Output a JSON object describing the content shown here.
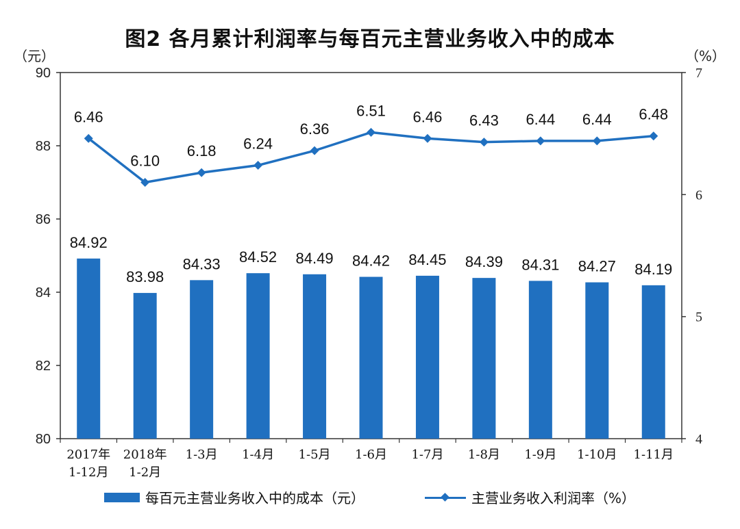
{
  "chart_data": {
    "type": "bar+line",
    "title": "图2 各月累计利润率与每百元主营业务收入中的成本",
    "left_axis_unit": "（元）",
    "right_axis_unit": "（%）",
    "categories": [
      [
        "2017年",
        "1-12月"
      ],
      [
        "2018年",
        "1-2月"
      ],
      [
        "1-3月"
      ],
      [
        "1-4月"
      ],
      [
        "1-5月"
      ],
      [
        "1-6月"
      ],
      [
        "1-7月"
      ],
      [
        "1-8月"
      ],
      [
        "1-9月"
      ],
      [
        "1-10月"
      ],
      [
        "1-11月"
      ]
    ],
    "series": [
      {
        "name": "每百元主营业务收入中的成本（元）",
        "type": "bar",
        "axis": "left",
        "values": [
          84.92,
          83.98,
          84.33,
          84.52,
          84.49,
          84.42,
          84.45,
          84.39,
          84.31,
          84.27,
          84.19
        ],
        "labels": [
          "84.92",
          "83.98",
          "84.33",
          "84.52",
          "84.49",
          "84.42",
          "84.45",
          "84.39",
          "84.31",
          "84.27",
          "84.19"
        ]
      },
      {
        "name": "主营业务收入利润率（%）",
        "type": "line",
        "axis": "right",
        "values": [
          6.46,
          6.1,
          6.18,
          6.24,
          6.36,
          6.51,
          6.46,
          6.43,
          6.44,
          6.44,
          6.48
        ],
        "labels": [
          "6.46",
          "6.10",
          "6.18",
          "6.24",
          "6.36",
          "6.51",
          "6.46",
          "6.43",
          "6.44",
          "6.44",
          "6.48"
        ]
      }
    ],
    "left_axis": {
      "min": 80,
      "max": 90,
      "ticks": [
        "80",
        "82",
        "84",
        "86",
        "88",
        "90"
      ]
    },
    "right_axis": {
      "min": 4,
      "max": 7,
      "ticks": [
        "4",
        "5",
        "6",
        "7"
      ]
    },
    "legend_position": "bottom",
    "grid": false,
    "colors": {
      "bar": "#2070c0",
      "line": "#2070c0",
      "axis": "#333333"
    }
  }
}
